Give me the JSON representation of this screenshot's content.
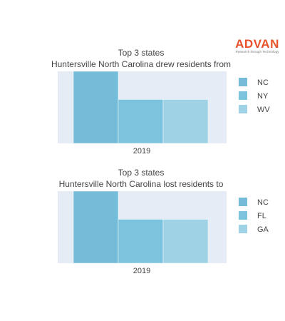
{
  "brand": {
    "name": "ADVAN",
    "tagline": "Research through Technology",
    "color": "#e8532b"
  },
  "colors": {
    "plot_bg": "#e5ecf6",
    "bar_1": "#74bcd8",
    "bar_2": "#7cc3dd",
    "bar_3": "#9fd2e4"
  },
  "chart_data": [
    {
      "type": "bar",
      "title_lines": [
        "Top 3 states",
        "Huntersville North Carolina drew residents from"
      ],
      "categories": [
        "2019"
      ],
      "series": [
        {
          "name": "NC",
          "values": [
            100
          ]
        },
        {
          "name": "NY",
          "values": [
            61
          ]
        },
        {
          "name": "WV",
          "values": [
            61
          ]
        }
      ],
      "ylim": [
        0,
        100
      ],
      "grid": false,
      "legend": "right"
    },
    {
      "type": "bar",
      "title_lines": [
        "Top 3 states",
        "Huntersville North Carolina lost residents to"
      ],
      "categories": [
        "2019"
      ],
      "series": [
        {
          "name": "NC",
          "values": [
            100
          ]
        },
        {
          "name": "FL",
          "values": [
            61
          ]
        },
        {
          "name": "GA",
          "values": [
            61
          ]
        }
      ],
      "ylim": [
        0,
        100
      ],
      "grid": false,
      "legend": "right"
    }
  ]
}
